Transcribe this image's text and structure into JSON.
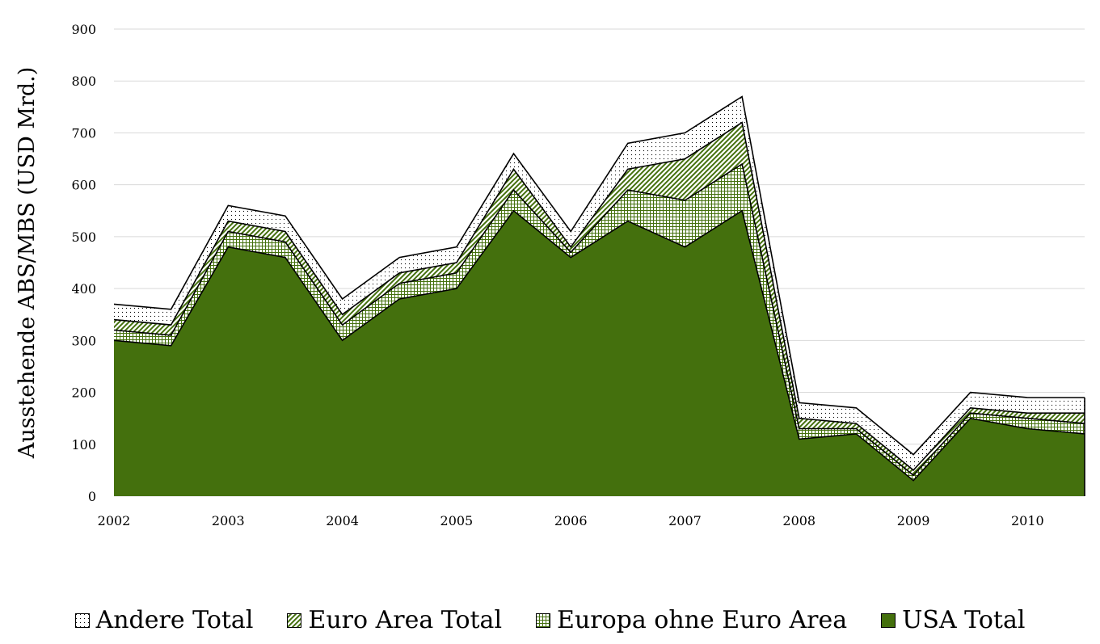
{
  "chart_data": {
    "type": "area",
    "stacked": true,
    "title": "",
    "xlabel": "",
    "ylabel": "Ausstehende ABS/MBS (USD Mrd.)",
    "ylim": [
      0,
      900
    ],
    "yticks": [
      0,
      100,
      200,
      300,
      400,
      500,
      600,
      700,
      800,
      900
    ],
    "xlim": [
      2002,
      2010.5
    ],
    "xticks": [
      2002,
      2003,
      2004,
      2005,
      2006,
      2007,
      2008,
      2009,
      2010
    ],
    "grid": "horizontal",
    "legend_position": "bottom",
    "x": [
      2002,
      2002.5,
      2003,
      2003.5,
      2004,
      2004.5,
      2005,
      2005.5,
      2006,
      2006.5,
      2007,
      2007.5,
      2008,
      2008.5,
      2009,
      2009.5,
      2010,
      2010.5
    ],
    "series": [
      {
        "name": "USA Total",
        "fill": "solid",
        "color": "#44700d",
        "values": [
          300,
          290,
          480,
          460,
          300,
          380,
          400,
          550,
          460,
          530,
          480,
          550,
          110,
          120,
          30,
          150,
          130,
          120
        ]
      },
      {
        "name": "Europa ohne Euro Area",
        "fill": "grid",
        "color": "#44700d",
        "values": [
          20,
          20,
          30,
          30,
          30,
          30,
          30,
          40,
          10,
          60,
          90,
          90,
          20,
          10,
          10,
          10,
          20,
          20
        ]
      },
      {
        "name": "Euro Area Total",
        "fill": "diagonal",
        "color": "#44700d",
        "values": [
          20,
          20,
          20,
          20,
          20,
          20,
          20,
          40,
          10,
          40,
          80,
          80,
          20,
          10,
          10,
          10,
          10,
          20
        ]
      },
      {
        "name": "Andere Total",
        "fill": "dots",
        "color": "#000000",
        "values": [
          30,
          30,
          30,
          30,
          30,
          30,
          30,
          30,
          30,
          50,
          50,
          50,
          30,
          30,
          30,
          30,
          30,
          30
        ]
      }
    ]
  },
  "legend": {
    "items": [
      {
        "label": "Andere Total",
        "fill": "dots"
      },
      {
        "label": "Euro Area Total",
        "fill": "diagonal"
      },
      {
        "label": "Europa ohne Euro Area",
        "fill": "grid"
      },
      {
        "label": "USA Total",
        "fill": "solid"
      }
    ]
  }
}
